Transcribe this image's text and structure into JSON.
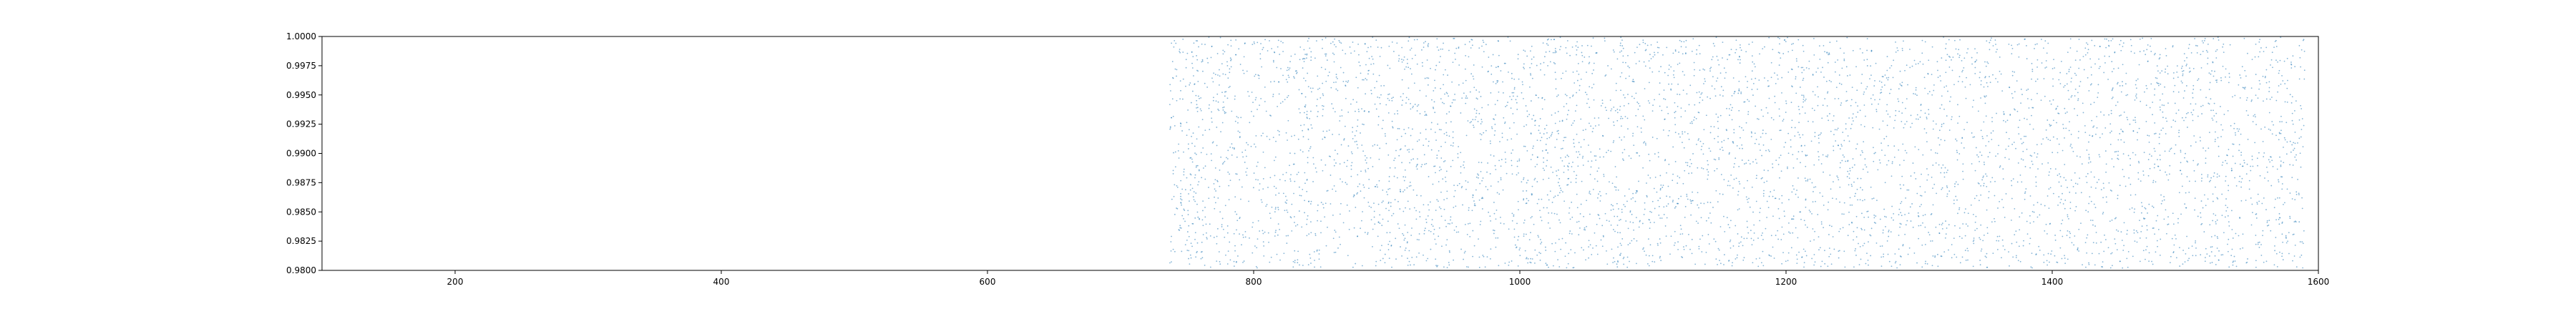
{
  "chart_data": {
    "type": "scatter",
    "title": "",
    "xlabel": "",
    "ylabel": "",
    "xlim": [
      100,
      1600
    ],
    "ylim": [
      0.98,
      1.0
    ],
    "grid": false,
    "legend": null,
    "x_ticks": [
      200,
      400,
      600,
      800,
      1000,
      1200,
      1400,
      1600
    ],
    "x_tick_labels": [
      "200",
      "400",
      "600",
      "800",
      "1000",
      "1200",
      "1400",
      "1600"
    ],
    "y_ticks": [
      0.98,
      0.9825,
      0.985,
      0.9875,
      0.99,
      0.9925,
      0.995,
      0.9975,
      1.0
    ],
    "y_tick_labels": [
      "0.9800",
      "0.9825",
      "0.9850",
      "0.9875",
      "0.9900",
      "0.9925",
      "0.9950",
      "0.9975",
      "1.0000"
    ],
    "marker_color": "#1f77b4",
    "series": [
      {
        "points_x_range": [
          737,
          1590
        ],
        "points_y_range": [
          0.9802,
          0.99995
        ],
        "points": [
          [
            740,
            0.9991
          ],
          [
            745,
            0.9962
          ],
          [
            751,
            0.9904
          ],
          [
            756,
            0.9859
          ],
          [
            760,
            0.9938
          ],
          [
            768,
            0.9982
          ],
          [
            773,
            0.9876
          ],
          [
            779,
            0.9813
          ],
          [
            786,
            0.9949
          ],
          [
            792,
            0.9897
          ],
          [
            799,
            0.9837
          ],
          [
            806,
            0.9974
          ],
          [
            812,
            0.9912
          ],
          [
            819,
            0.9866
          ],
          [
            826,
            0.9928
          ],
          [
            833,
            0.9809
          ],
          [
            840,
            0.9985
          ],
          [
            848,
            0.9851
          ],
          [
            855,
            0.9919
          ],
          [
            862,
            0.9955
          ],
          [
            870,
            0.9889
          ],
          [
            878,
            0.9829
          ],
          [
            886,
            0.9968
          ],
          [
            893,
            0.9907
          ],
          [
            901,
            0.9842
          ],
          [
            909,
            0.9979
          ],
          [
            917,
            0.9872
          ],
          [
            925,
            0.9934
          ],
          [
            933,
            0.9818
          ],
          [
            941,
            0.9896
          ],
          [
            949,
            0.9961
          ],
          [
            957,
            0.9856
          ],
          [
            965,
            0.9924
          ],
          [
            973,
            0.9987
          ],
          [
            981,
            0.9834
          ],
          [
            989,
            0.9901
          ],
          [
            997,
            0.9946
          ],
          [
            1005,
            0.9868
          ],
          [
            1013,
            0.9813
          ],
          [
            1021,
            0.9975
          ],
          [
            1029,
            0.9917
          ],
          [
            1037,
            0.9849
          ],
          [
            1045,
            0.9958
          ],
          [
            1053,
            0.9882
          ],
          [
            1061,
            0.9826
          ],
          [
            1069,
            0.9938
          ],
          [
            1077,
            0.9992
          ],
          [
            1085,
            0.9862
          ],
          [
            1093,
            0.9909
          ],
          [
            1101,
            0.9841
          ],
          [
            1109,
            0.9969
          ],
          [
            1117,
            0.9893
          ],
          [
            1125,
            0.9821
          ],
          [
            1133,
            0.9952
          ],
          [
            1141,
            0.9878
          ],
          [
            1149,
            0.9931
          ],
          [
            1157,
            0.9808
          ],
          [
            1165,
            0.9983
          ],
          [
            1173,
            0.9854
          ],
          [
            1181,
            0.9914
          ],
          [
            1189,
            0.9965
          ],
          [
            1197,
            0.9837
          ],
          [
            1205,
            0.9899
          ],
          [
            1213,
            0.9944
          ],
          [
            1221,
            0.9871
          ],
          [
            1229,
            0.9817
          ],
          [
            1237,
            0.9978
          ],
          [
            1245,
            0.9921
          ],
          [
            1253,
            0.9846
          ],
          [
            1261,
            0.9957
          ],
          [
            1269,
            0.9886
          ],
          [
            1277,
            0.9829
          ],
          [
            1285,
            0.9936
          ],
          [
            1293,
            0.9989
          ],
          [
            1301,
            0.9864
          ],
          [
            1309,
            0.9903
          ],
          [
            1317,
            0.9839
          ],
          [
            1325,
            0.9971
          ],
          [
            1333,
            0.9891
          ],
          [
            1341,
            0.9823
          ],
          [
            1349,
            0.9949
          ],
          [
            1357,
            0.9876
          ],
          [
            1365,
            0.9927
          ],
          [
            1373,
            0.9811
          ],
          [
            1381,
            0.9981
          ],
          [
            1389,
            0.9858
          ],
          [
            1397,
            0.9912
          ],
          [
            1405,
            0.9963
          ],
          [
            1413,
            0.9833
          ],
          [
            1421,
            0.9897
          ],
          [
            1429,
            0.9942
          ],
          [
            1437,
            0.9869
          ],
          [
            1445,
            0.9815
          ],
          [
            1453,
            0.9976
          ],
          [
            1461,
            0.9919
          ],
          [
            1469,
            0.9844
          ],
          [
            1477,
            0.9955
          ],
          [
            1485,
            0.9884
          ],
          [
            1493,
            0.9827
          ],
          [
            1501,
            0.9934
          ],
          [
            1509,
            0.9986
          ],
          [
            1517,
            0.9861
          ],
          [
            1525,
            0.9906
          ],
          [
            1533,
            0.9838
          ],
          [
            1541,
            0.9967
          ],
          [
            1549,
            0.9889
          ],
          [
            1557,
            0.9822
          ],
          [
            1565,
            0.9948
          ],
          [
            1573,
            0.9874
          ],
          [
            1581,
            0.9925
          ],
          [
            1588,
            0.9853
          ]
        ]
      }
    ]
  }
}
